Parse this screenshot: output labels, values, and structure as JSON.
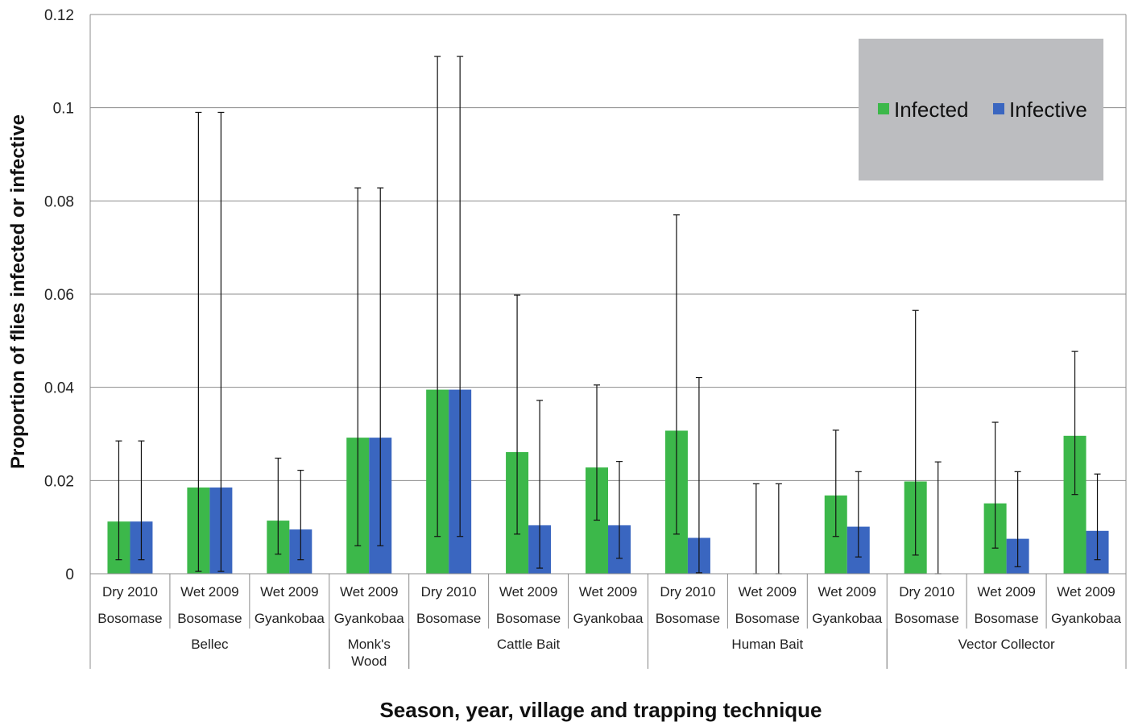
{
  "chart_data": {
    "type": "bar",
    "title": "",
    "xlabel": "Season, year, village and trapping technique",
    "ylabel": "Proportion of flies infected or infective",
    "ylim": [
      0,
      0.12
    ],
    "yticks": [
      "0",
      "0.02",
      "0.04",
      "0.06",
      "0.08",
      "0.1",
      "0.12"
    ],
    "grid": true,
    "legend_position": "top-right",
    "colors": {
      "Infected": "#3cb84a",
      "Infective": "#3a66c0",
      "legend_bg": "#bcbdc0"
    },
    "groups": [
      {
        "label": "Bellec",
        "start": 0,
        "end": 3
      },
      {
        "label": "Monk's\nWood",
        "start": 3,
        "end": 4
      },
      {
        "label": "Cattle Bait",
        "start": 4,
        "end": 7
      },
      {
        "label": "Human Bait",
        "start": 7,
        "end": 10
      },
      {
        "label": "Vector Collector",
        "start": 10,
        "end": 13
      }
    ],
    "categories": [
      {
        "season": "Dry 2010",
        "village": "Bosomase"
      },
      {
        "season": "Wet 2009",
        "village": "Bosomase"
      },
      {
        "season": "Wet 2009",
        "village": "Gyankobaa"
      },
      {
        "season": "Wet 2009",
        "village": "Gyankobaa"
      },
      {
        "season": "Dry 2010",
        "village": "Bosomase"
      },
      {
        "season": "Wet 2009",
        "village": "Bosomase"
      },
      {
        "season": "Wet 2009",
        "village": "Gyankobaa"
      },
      {
        "season": "Dry 2010",
        "village": "Bosomase"
      },
      {
        "season": "Wet 2009",
        "village": "Bosomase"
      },
      {
        "season": "Wet 2009",
        "village": "Gyankobaa"
      },
      {
        "season": "Dry 2010",
        "village": "Bosomase"
      },
      {
        "season": "Wet 2009",
        "village": "Bosomase"
      },
      {
        "season": "Wet 2009",
        "village": "Gyankobaa"
      }
    ],
    "series": [
      {
        "name": "Infected",
        "values": [
          0.0112,
          0.0185,
          0.0114,
          0.0292,
          0.0395,
          0.0261,
          0.0228,
          0.0307,
          0,
          0.0168,
          0.0198,
          0.0151,
          0.0296
        ],
        "error_low": [
          0.003,
          0.0005,
          0.0042,
          0.006,
          0.008,
          0.0085,
          0.0115,
          0.0085,
          0,
          0.008,
          0.004,
          0.0055,
          0.017
        ],
        "error_high": [
          0.0285,
          0.099,
          0.0248,
          0.0828,
          0.111,
          0.0598,
          0.0405,
          0.077,
          0.0193,
          0.0308,
          0.0565,
          0.0325,
          0.0477
        ]
      },
      {
        "name": "Infective",
        "values": [
          0.0112,
          0.0185,
          0.0095,
          0.0292,
          0.0395,
          0.0104,
          0.0104,
          0.0077,
          0,
          0.0101,
          0,
          0.0075,
          0.0092
        ],
        "error_low": [
          0.003,
          0.0005,
          0.003,
          0.006,
          0.008,
          0.0012,
          0.0033,
          0.0002,
          0,
          0.0036,
          0,
          0.0015,
          0.003
        ],
        "error_high": [
          0.0285,
          0.099,
          0.0222,
          0.0828,
          0.111,
          0.0372,
          0.0241,
          0.0421,
          0.0193,
          0.0219,
          0.024,
          0.0219,
          0.0214
        ]
      }
    ]
  }
}
